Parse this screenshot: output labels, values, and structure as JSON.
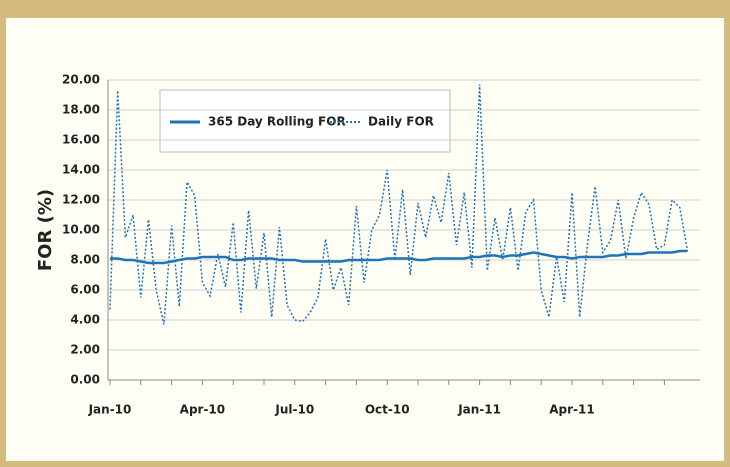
{
  "chart_data": {
    "type": "line",
    "y_label": "FOR (%)",
    "legend": "upper left",
    "grid": true,
    "categories": [
      "Jan-10",
      null,
      null,
      null,
      null,
      null,
      null,
      null,
      null,
      null,
      null,
      null,
      "Apr-10",
      null,
      null,
      null,
      null,
      null,
      null,
      null,
      null,
      null,
      null,
      null,
      "Jul-10",
      null,
      null,
      null,
      null,
      null,
      null,
      null,
      null,
      null,
      null,
      null,
      "Oct-10",
      null,
      null,
      null,
      null,
      null,
      null,
      null,
      null,
      null,
      null,
      null,
      "Jan-11",
      null,
      null,
      null,
      null,
      null,
      null,
      null,
      null,
      null,
      null,
      null,
      "Apr-11",
      null,
      null,
      null,
      null,
      null,
      null,
      null,
      null,
      null,
      null,
      null,
      null,
      null,
      null,
      null
    ],
    "ylim": [
      0,
      20
    ],
    "yticks": [
      {
        "value": 0,
        "label": "0.00"
      },
      {
        "value": 2,
        "label": "2.00"
      },
      {
        "value": 4,
        "label": "4.00"
      },
      {
        "value": 6,
        "label": "6.00"
      },
      {
        "value": 8,
        "label": "8.00"
      },
      {
        "value": 10,
        "label": "10.00"
      },
      {
        "value": 12,
        "label": "12.00"
      },
      {
        "value": 14,
        "label": "14.00"
      },
      {
        "value": 16,
        "label": "16.00"
      },
      {
        "value": 18,
        "label": "18.00"
      },
      {
        "value": 20,
        "label": "20.00"
      }
    ],
    "series": [
      {
        "name": "365 Day Rolling FOR",
        "color": "#1f73b7",
        "style": "solid",
        "values": [
          8.1,
          8.1,
          8.0,
          8.0,
          7.9,
          7.8,
          7.8,
          7.8,
          7.9,
          8.0,
          8.1,
          8.1,
          8.2,
          8.2,
          8.2,
          8.2,
          8.0,
          8.0,
          8.1,
          8.1,
          8.1,
          8.1,
          8.0,
          8.0,
          8.0,
          7.9,
          7.9,
          7.9,
          7.9,
          7.9,
          7.9,
          8.0,
          8.0,
          8.0,
          8.0,
          8.0,
          8.1,
          8.1,
          8.1,
          8.1,
          8.0,
          8.0,
          8.1,
          8.1,
          8.1,
          8.1,
          8.1,
          8.2,
          8.2,
          8.3,
          8.3,
          8.2,
          8.3,
          8.3,
          8.4,
          8.5,
          8.4,
          8.3,
          8.2,
          8.2,
          8.1,
          8.2,
          8.2,
          8.2,
          8.2,
          8.3,
          8.3,
          8.4,
          8.4,
          8.4,
          8.5,
          8.5,
          8.5,
          8.5,
          8.6,
          8.6
        ]
      },
      {
        "name": "Daily FOR",
        "color": "#1f73b7",
        "style": "dotted",
        "values": [
          4.7,
          19.3,
          9.5,
          11.0,
          5.5,
          10.7,
          6.0,
          3.7,
          10.3,
          4.9,
          13.2,
          12.3,
          6.5,
          5.6,
          8.4,
          6.2,
          10.5,
          4.5,
          11.3,
          6.1,
          9.8,
          4.2,
          10.2,
          5.0,
          4.0,
          3.9,
          4.5,
          5.5,
          9.4,
          6.0,
          7.5,
          5.0,
          11.6,
          6.5,
          10.0,
          11.0,
          14.0,
          8.0,
          12.7,
          7.0,
          11.8,
          9.5,
          12.3,
          10.5,
          13.8,
          9.0,
          12.5,
          7.5,
          19.7,
          7.3,
          10.8,
          8.0,
          11.5,
          7.3,
          11.2,
          12.0,
          6.0,
          4.2,
          8.2,
          5.2,
          12.5,
          4.2,
          9.0,
          12.9,
          8.5,
          9.3,
          12.0,
          8.1,
          10.8,
          12.5,
          11.7,
          8.7,
          9.0,
          12.0,
          11.5,
          8.6
        ]
      }
    ]
  }
}
